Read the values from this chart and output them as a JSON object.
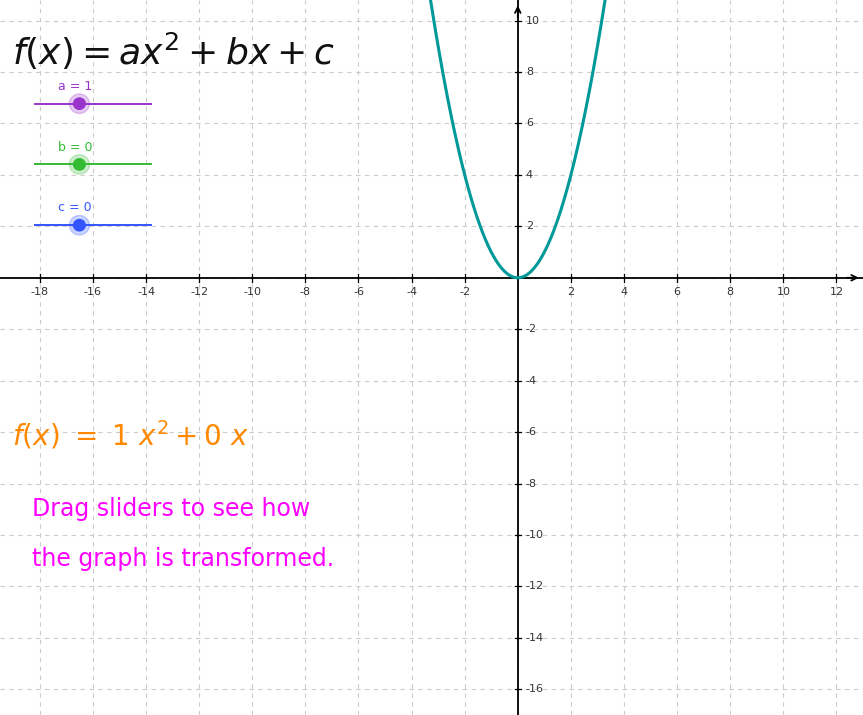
{
  "a_val": 1,
  "b_val": 0,
  "c_val": 0,
  "slider_a_label": "a = 1",
  "slider_b_label": "b = 0",
  "slider_c_label": "c = 0",
  "slider_a_color": "#9933cc",
  "slider_b_color": "#33bb33",
  "slider_c_color": "#3355ff",
  "curve_color": "#009999",
  "background_color": "#ffffff",
  "grid_color": "#cccccc",
  "axis_color": "#000000",
  "title_color": "#111111",
  "instance_formula_color": "#ff8800",
  "drag_text_color": "#ff00ff",
  "x_min": -19.5,
  "x_max": 13.0,
  "y_min": -17.0,
  "y_max": 10.8,
  "font_size_title": 26,
  "font_size_slider_label": 9,
  "font_size_instance": 20,
  "font_size_drag": 17,
  "font_size_tick": 8
}
